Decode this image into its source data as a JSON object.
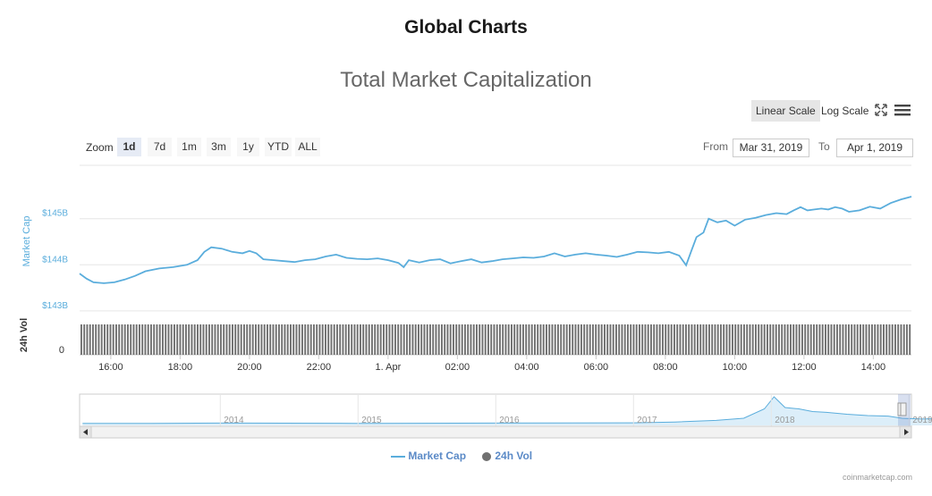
{
  "page_title": "Global Charts",
  "toolbar": {
    "linear_label": "Linear Scale",
    "log_label": "Log Scale",
    "expand_icon": "expand-icon",
    "menu_icon": "menu-icon"
  },
  "zoom": {
    "label": "Zoom",
    "buttons": [
      "1d",
      "7d",
      "1m",
      "3m",
      "1y",
      "YTD",
      "ALL"
    ],
    "active": "1d"
  },
  "range": {
    "from_label": "From",
    "from_value": "Mar 31, 2019",
    "to_label": "To",
    "to_value": "Apr 1, 2019"
  },
  "legend": {
    "items": [
      {
        "name": "Market Cap",
        "color": "#5aaddc"
      },
      {
        "name": "24h Vol",
        "color": "#707070"
      }
    ]
  },
  "credits": "coinmarketcap.com",
  "colors": {
    "market_cap": "#5aaddc",
    "volume": "#6f6f6f",
    "grid": "#e6e6e6",
    "navigator_fill": "#dceef9"
  },
  "chart_data": {
    "type": "line",
    "title": "Total Market Capitalization",
    "y_axis_title": "Market Cap",
    "y_ticks": [
      {
        "value": 143,
        "label": "$143B"
      },
      {
        "value": 144,
        "label": "$144B"
      },
      {
        "value": 145,
        "label": "$145B"
      }
    ],
    "ylim": [
      142.9,
      146.1
    ],
    "volume_axis": {
      "title": "24h Vol",
      "tick_label": "0"
    },
    "x_ticks": [
      {
        "t": 16,
        "label": "16:00"
      },
      {
        "t": 18,
        "label": "18:00"
      },
      {
        "t": 20,
        "label": "20:00"
      },
      {
        "t": 22,
        "label": "22:00"
      },
      {
        "t": 24,
        "label": "1. Apr"
      },
      {
        "t": 26,
        "label": "02:00"
      },
      {
        "t": 28,
        "label": "04:00"
      },
      {
        "t": 30,
        "label": "06:00"
      },
      {
        "t": 32,
        "label": "08:00"
      },
      {
        "t": 34,
        "label": "10:00"
      },
      {
        "t": 36,
        "label": "12:00"
      },
      {
        "t": 38,
        "label": "14:00"
      }
    ],
    "xlim": [
      15.1,
      39.1
    ],
    "unit": "B",
    "series": [
      {
        "name": "Market Cap",
        "points": [
          [
            15.1,
            143.81
          ],
          [
            15.3,
            143.7
          ],
          [
            15.5,
            143.62
          ],
          [
            15.8,
            143.6
          ],
          [
            16.1,
            143.62
          ],
          [
            16.4,
            143.68
          ],
          [
            16.7,
            143.76
          ],
          [
            17.0,
            143.86
          ],
          [
            17.4,
            143.92
          ],
          [
            17.8,
            143.95
          ],
          [
            18.2,
            144.0
          ],
          [
            18.5,
            144.1
          ],
          [
            18.7,
            144.28
          ],
          [
            18.9,
            144.38
          ],
          [
            19.2,
            144.35
          ],
          [
            19.5,
            144.28
          ],
          [
            19.8,
            144.25
          ],
          [
            20.0,
            144.3
          ],
          [
            20.2,
            144.25
          ],
          [
            20.4,
            144.12
          ],
          [
            20.7,
            144.1
          ],
          [
            21.0,
            144.08
          ],
          [
            21.3,
            144.06
          ],
          [
            21.6,
            144.1
          ],
          [
            21.9,
            144.12
          ],
          [
            22.2,
            144.18
          ],
          [
            22.5,
            144.22
          ],
          [
            22.8,
            144.15
          ],
          [
            23.1,
            144.13
          ],
          [
            23.4,
            144.12
          ],
          [
            23.7,
            144.14
          ],
          [
            24.0,
            144.1
          ],
          [
            24.3,
            144.04
          ],
          [
            24.45,
            143.95
          ],
          [
            24.6,
            144.1
          ],
          [
            24.9,
            144.05
          ],
          [
            25.2,
            144.1
          ],
          [
            25.5,
            144.12
          ],
          [
            25.8,
            144.03
          ],
          [
            26.1,
            144.08
          ],
          [
            26.4,
            144.12
          ],
          [
            26.7,
            144.05
          ],
          [
            27.0,
            144.08
          ],
          [
            27.3,
            144.12
          ],
          [
            27.6,
            144.14
          ],
          [
            27.9,
            144.16
          ],
          [
            28.2,
            144.15
          ],
          [
            28.5,
            144.18
          ],
          [
            28.8,
            144.25
          ],
          [
            29.1,
            144.18
          ],
          [
            29.4,
            144.22
          ],
          [
            29.7,
            144.25
          ],
          [
            30.0,
            144.22
          ],
          [
            30.3,
            144.2
          ],
          [
            30.6,
            144.17
          ],
          [
            30.9,
            144.22
          ],
          [
            31.2,
            144.28
          ],
          [
            31.5,
            144.27
          ],
          [
            31.8,
            144.25
          ],
          [
            32.1,
            144.28
          ],
          [
            32.4,
            144.2
          ],
          [
            32.6,
            143.99
          ],
          [
            32.75,
            144.3
          ],
          [
            32.9,
            144.6
          ],
          [
            33.1,
            144.7
          ],
          [
            33.25,
            145.0
          ],
          [
            33.5,
            144.92
          ],
          [
            33.75,
            144.96
          ],
          [
            34.0,
            144.85
          ],
          [
            34.3,
            144.98
          ],
          [
            34.6,
            145.02
          ],
          [
            34.9,
            145.08
          ],
          [
            35.2,
            145.12
          ],
          [
            35.5,
            145.1
          ],
          [
            35.7,
            145.18
          ],
          [
            35.9,
            145.25
          ],
          [
            36.1,
            145.18
          ],
          [
            36.3,
            145.2
          ],
          [
            36.5,
            145.22
          ],
          [
            36.7,
            145.2
          ],
          [
            36.9,
            145.25
          ],
          [
            37.1,
            145.22
          ],
          [
            37.3,
            145.15
          ],
          [
            37.6,
            145.18
          ],
          [
            37.9,
            145.26
          ],
          [
            38.2,
            145.22
          ],
          [
            38.5,
            145.34
          ],
          [
            38.8,
            145.42
          ],
          [
            39.1,
            145.48
          ]
        ]
      },
      {
        "name": "24h Vol",
        "note_values": "full-height bars across the whole range"
      }
    ],
    "navigator": {
      "year_labels": [
        "2014",
        "2015",
        "2016",
        "2017",
        "2018",
        "2019"
      ],
      "history": [
        [
          2013.0,
          0.01
        ],
        [
          2013.5,
          0.01
        ],
        [
          2014.0,
          0.02
        ],
        [
          2015.0,
          0.01
        ],
        [
          2016.0,
          0.02
        ],
        [
          2017.0,
          0.03
        ],
        [
          2017.3,
          0.06
        ],
        [
          2017.6,
          0.12
        ],
        [
          2017.8,
          0.2
        ],
        [
          2017.95,
          0.55
        ],
        [
          2018.02,
          1.0
        ],
        [
          2018.1,
          0.6
        ],
        [
          2018.2,
          0.55
        ],
        [
          2018.3,
          0.45
        ],
        [
          2018.4,
          0.42
        ],
        [
          2018.55,
          0.35
        ],
        [
          2018.7,
          0.3
        ],
        [
          2018.85,
          0.28
        ],
        [
          2018.95,
          0.2
        ],
        [
          2019.1,
          0.17
        ],
        [
          2019.25,
          0.2
        ]
      ]
    }
  }
}
